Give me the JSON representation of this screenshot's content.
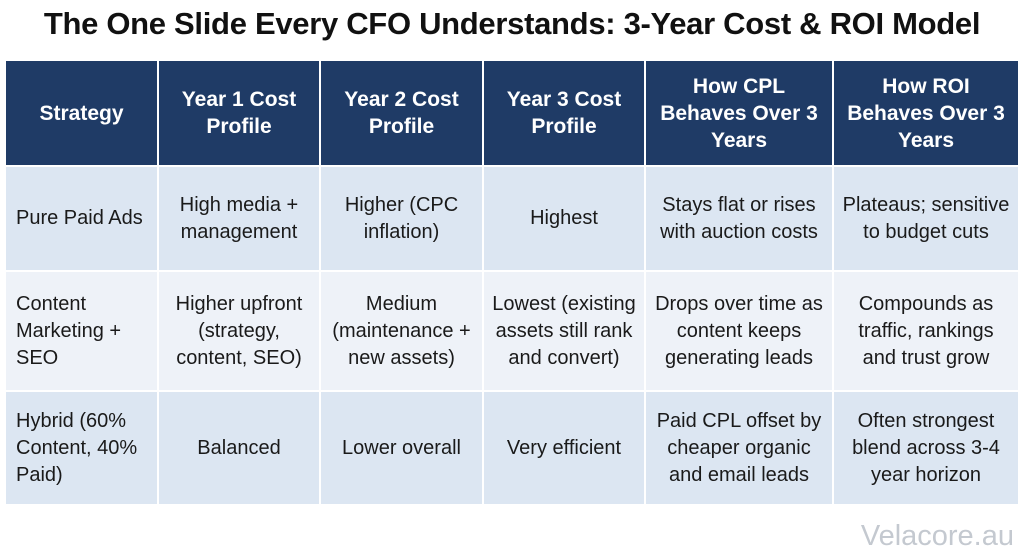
{
  "title": "The One Slide Every CFO Understands: 3-Year Cost & ROI Model",
  "table": {
    "headers": [
      "Strategy",
      "Year 1 Cost Profile",
      "Year 2 Cost Profile",
      "Year 3 Cost Profile",
      "How CPL Behaves Over 3 Years",
      "How ROI Behaves Over 3 Years"
    ],
    "rows": [
      [
        "Pure Paid Ads",
        "High media + management",
        "Higher (CPC inflation)",
        "Highest",
        "Stays flat or rises with auction costs",
        "Plateaus; sensitive to budget cuts"
      ],
      [
        "Content Marketing + SEO",
        "Higher upfront (strategy, content, SEO)",
        "Medium (maintenance + new assets)",
        "Lowest (existing assets still rank and convert)",
        "Drops over time as content keeps generating leads",
        "Compounds as traffic, rankings and trust grow"
      ],
      [
        "Hybrid (60% Content, 40% Paid)",
        "Balanced",
        "Lower overall",
        "Very efficient",
        "Paid CPL offset by cheaper organic and email leads",
        "Often strongest blend across 3-4 year horizon"
      ]
    ]
  },
  "watermark": "Velacore.au",
  "colors": {
    "header_bg": "#1f3b66",
    "row_light": "#dce6f2",
    "row_lighter": "#eef2f8"
  }
}
